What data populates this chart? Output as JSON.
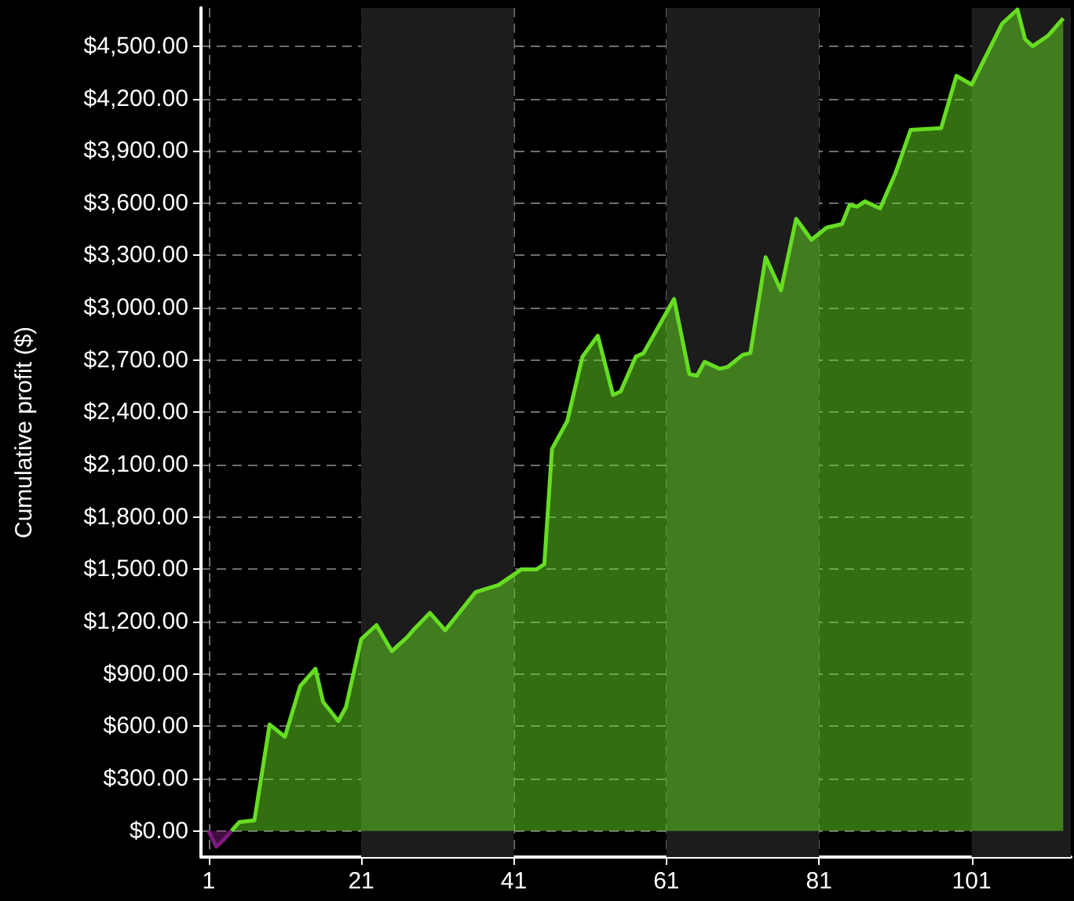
{
  "chart_data": {
    "type": "area",
    "ylabel": "Cumulative profit ($)",
    "series": [
      {
        "color": "#7b1b7b",
        "x": [
          1,
          2,
          3,
          4
        ],
        "values": [
          0,
          -90,
          -50,
          0
        ]
      },
      {
        "color": "#66dd22",
        "x": [
          4,
          5,
          7,
          9,
          11,
          13,
          15,
          16,
          18,
          19,
          21,
          23,
          25,
          27,
          28,
          30,
          32,
          34,
          36,
          39,
          41,
          42,
          44,
          45,
          46,
          48,
          50,
          52,
          54,
          55,
          57,
          58,
          62,
          64,
          65,
          66,
          68,
          69,
          71,
          72,
          74,
          76,
          78,
          80,
          82,
          84,
          85,
          86,
          87,
          89,
          91,
          93,
          97,
          99,
          101,
          105,
          107,
          108,
          109,
          111,
          113
        ],
        "values": [
          0,
          50,
          60,
          610,
          540,
          830,
          930,
          740,
          630,
          710,
          1100,
          1180,
          1030,
          1110,
          1160,
          1250,
          1150,
          1260,
          1370,
          1410,
          1470,
          1500,
          1500,
          1530,
          2190,
          2350,
          2720,
          2840,
          2500,
          2520,
          2720,
          2740,
          3050,
          2620,
          2610,
          2690,
          2650,
          2660,
          2730,
          2740,
          3290,
          3100,
          3510,
          3390,
          3460,
          3480,
          3590,
          3580,
          3610,
          3570,
          3770,
          4020,
          4030,
          4330,
          4280,
          4630,
          4710,
          4540,
          4500,
          4560,
          4660
        ]
      }
    ],
    "xlim": [
      0,
      114
    ],
    "xticks": [
      1,
      21,
      41,
      61,
      81,
      101
    ],
    "ylim": [
      -150,
      4720
    ],
    "yticks": [
      {
        "value": 0,
        "label": "$0.00"
      },
      {
        "value": 300,
        "label": "$300.00"
      },
      {
        "value": 600,
        "label": "$600.00"
      },
      {
        "value": 900,
        "label": "$900.00"
      },
      {
        "value": 1200,
        "label": "$1,200.00"
      },
      {
        "value": 1500,
        "label": "$1,500.00"
      },
      {
        "value": 1800,
        "label": "$1,800.00"
      },
      {
        "value": 2100,
        "label": "$2,100.00"
      },
      {
        "value": 2400,
        "label": "$2,400.00"
      },
      {
        "value": 2700,
        "label": "$2,700.00"
      },
      {
        "value": 3000,
        "label": "$3,000.00"
      },
      {
        "value": 3300,
        "label": "$3,300.00"
      },
      {
        "value": 3600,
        "label": "$3,600.00"
      },
      {
        "value": 3900,
        "label": "$3,900.00"
      },
      {
        "value": 4200,
        "label": "$4,200.00"
      },
      {
        "value": 4500,
        "label": "$4,500.00"
      }
    ],
    "bands": [
      {
        "axis": "x",
        "from": 21,
        "to": 41,
        "color": "#1c1c1c"
      },
      {
        "axis": "x",
        "from": 61,
        "to": 81,
        "color": "#1c1c1c"
      },
      {
        "axis": "x",
        "from": 101,
        "to": 114,
        "color": "#1c1c1c"
      }
    ],
    "grid": true,
    "line_style": "solid",
    "marker": "none"
  }
}
